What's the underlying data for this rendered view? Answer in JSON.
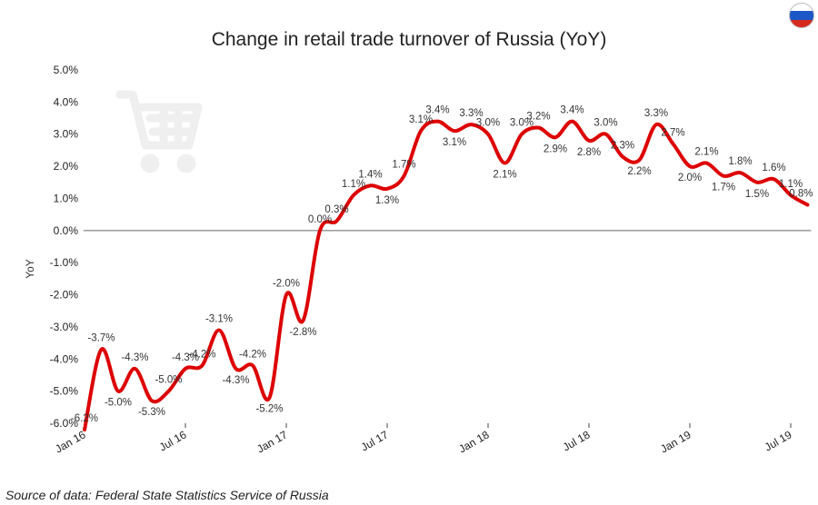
{
  "title": "Change in retail trade turnover of Russia (YoY)",
  "source": "Source of data: Federal State Statistics Service of Russia",
  "flag_icon": "russia-flag-icon",
  "chart_data": {
    "type": "line",
    "title": "Change in retail trade turnover of Russia (YoY)",
    "ylabel": "YoY",
    "xlabel": "",
    "ylim": [
      -6.0,
      5.0
    ],
    "y_ticks": [
      "5.0%",
      "4.0%",
      "3.0%",
      "2.0%",
      "1.0%",
      "0.0%",
      "-1.0%",
      "-2.0%",
      "-3.0%",
      "-4.0%",
      "-5.0%",
      "-6.0%"
    ],
    "y_tick_values": [
      5,
      4,
      3,
      2,
      1,
      0,
      -1,
      -2,
      -3,
      -4,
      -5,
      -6
    ],
    "x_ticks": [
      "Jan 16",
      "Jul 16",
      "Jan 17",
      "Jul 17",
      "Jan 18",
      "Jul 18",
      "Jan 19",
      "Jul 19"
    ],
    "x_tick_index": [
      0,
      6,
      12,
      18,
      24,
      30,
      36,
      42
    ],
    "grid": false,
    "zero_line": true,
    "line_color": "#dd0000",
    "x": [
      "Jan 16",
      "Feb 16",
      "Mar 16",
      "Apr 16",
      "May 16",
      "Jun 16",
      "Jul 16",
      "Aug 16",
      "Sep 16",
      "Oct 16",
      "Nov 16",
      "Dec 16",
      "Jan 17",
      "Feb 17",
      "Mar 17",
      "Apr 17",
      "May 17",
      "Jun 17",
      "Jul 17",
      "Aug 17",
      "Sep 17",
      "Oct 17",
      "Nov 17",
      "Dec 17",
      "Jan 18",
      "Feb 18",
      "Mar 18",
      "Apr 18",
      "May 18",
      "Jun 18",
      "Jul 18",
      "Aug 18",
      "Sep 18",
      "Oct 18",
      "Nov 18",
      "Dec 18",
      "Jan 19",
      "Feb 19",
      "Mar 19",
      "Apr 19",
      "May 19",
      "Jun 19",
      "Jul 19",
      "Aug 19"
    ],
    "series": [
      {
        "values": [
          -6.2,
          -3.7,
          -5.0,
          -4.3,
          -5.3,
          -5.0,
          -4.3,
          -4.2,
          -3.1,
          -4.3,
          -4.2,
          -5.2,
          -2.0,
          -2.8,
          0.0,
          0.3,
          1.1,
          1.4,
          1.3,
          1.7,
          3.1,
          3.4,
          3.1,
          3.3,
          3.0,
          2.1,
          3.0,
          3.2,
          2.9,
          3.4,
          2.8,
          3.0,
          2.3,
          2.2,
          3.3,
          2.7,
          2.0,
          2.1,
          1.7,
          1.8,
          1.5,
          1.6,
          1.1,
          0.8
        ],
        "labels": [
          "-6.2%",
          "-3.7%",
          "-5.0%",
          "-4.3%",
          "-5.3%",
          "-5.0%",
          "-4.3%",
          "-4.2%",
          "-3.1%",
          "-4.3%",
          "-4.2%",
          "-5.2%",
          "-2.0%",
          "-2.8%",
          "0.0%",
          "0.3%",
          "1.1%",
          "1.4%",
          "1.3%",
          "1.7%",
          "3.1%",
          "3.4%",
          "3.1%",
          "3.3%",
          "3.0%",
          "2.1%",
          "3.0%",
          "3.2%",
          "2.9%",
          "3.4%",
          "2.8%",
          "3.0%",
          "2.3%",
          "2.2%",
          "3.3%",
          "2.7%",
          "2.0%",
          "2.1%",
          "1.7%",
          "1.8%",
          "1.5%",
          "1.6%",
          "1.1%",
          "0.8%"
        ]
      }
    ]
  }
}
